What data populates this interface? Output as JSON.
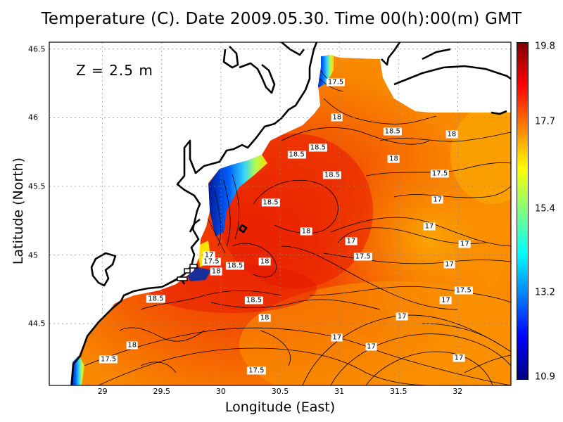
{
  "title": "Temperature (C). Date 2009.05.30. Time 00(h):00(m) GMT",
  "depth_label": "Z = 2.5 m",
  "x_axis": {
    "label": "Longitude (East)",
    "ticks": [
      "29",
      "29.5",
      "30",
      "30.5",
      "31",
      "31.5",
      "32"
    ],
    "range": [
      28.55,
      32.45
    ]
  },
  "y_axis": {
    "label": "Latitude (North)",
    "ticks": [
      "44.5",
      "45",
      "45.5",
      "46",
      "46.5"
    ],
    "range": [
      44.05,
      46.55
    ]
  },
  "colorbar": {
    "ticks": [
      "19.8",
      "17.7",
      "15.4",
      "13.2",
      "10.9"
    ],
    "range": [
      10.9,
      19.8
    ],
    "colors": [
      "#00007f",
      "#0000ff",
      "#007fff",
      "#00ffff",
      "#7fff7f",
      "#ffff00",
      "#ff7f00",
      "#ff0000",
      "#7f0000"
    ]
  },
  "contour_labels": [
    {
      "text": "17.5",
      "lon": 30.97,
      "lat": 46.26
    },
    {
      "text": "18",
      "lon": 30.98,
      "lat": 46.0
    },
    {
      "text": "18.5",
      "lon": 31.45,
      "lat": 45.9
    },
    {
      "text": "18",
      "lon": 31.95,
      "lat": 45.88
    },
    {
      "text": "18.5",
      "lon": 30.82,
      "lat": 45.78
    },
    {
      "text": "18.5",
      "lon": 30.64,
      "lat": 45.73
    },
    {
      "text": "18",
      "lon": 31.46,
      "lat": 45.7
    },
    {
      "text": "18.5",
      "lon": 30.94,
      "lat": 45.58
    },
    {
      "text": "17.5",
      "lon": 31.85,
      "lat": 45.59
    },
    {
      "text": "18.5",
      "lon": 30.42,
      "lat": 45.38
    },
    {
      "text": "17",
      "lon": 31.83,
      "lat": 45.4
    },
    {
      "text": "18",
      "lon": 30.72,
      "lat": 45.17
    },
    {
      "text": "17",
      "lon": 31.76,
      "lat": 45.21
    },
    {
      "text": "17",
      "lon": 31.1,
      "lat": 45.1
    },
    {
      "text": "17",
      "lon": 32.06,
      "lat": 45.08
    },
    {
      "text": "17",
      "lon": 29.9,
      "lat": 45.0
    },
    {
      "text": "17.5",
      "lon": 31.2,
      "lat": 44.99
    },
    {
      "text": "17.5",
      "lon": 29.92,
      "lat": 44.95
    },
    {
      "text": "18",
      "lon": 30.37,
      "lat": 44.95
    },
    {
      "text": "18.5",
      "lon": 30.12,
      "lat": 44.92
    },
    {
      "text": "18",
      "lon": 29.96,
      "lat": 44.88
    },
    {
      "text": "17",
      "lon": 31.93,
      "lat": 44.93
    },
    {
      "text": "17.5",
      "lon": 32.05,
      "lat": 44.74
    },
    {
      "text": "18.5",
      "lon": 29.45,
      "lat": 44.68
    },
    {
      "text": "18.5",
      "lon": 30.28,
      "lat": 44.67
    },
    {
      "text": "17",
      "lon": 31.9,
      "lat": 44.67
    },
    {
      "text": "18",
      "lon": 30.37,
      "lat": 44.54
    },
    {
      "text": "17",
      "lon": 31.53,
      "lat": 44.55
    },
    {
      "text": "17",
      "lon": 30.98,
      "lat": 44.4
    },
    {
      "text": "18",
      "lon": 29.25,
      "lat": 44.34
    },
    {
      "text": "17",
      "lon": 31.27,
      "lat": 44.33
    },
    {
      "text": "17.5",
      "lon": 29.05,
      "lat": 44.24
    },
    {
      "text": "17",
      "lon": 32.01,
      "lat": 44.25
    },
    {
      "text": "17.5",
      "lon": 30.3,
      "lat": 44.16
    }
  ]
}
